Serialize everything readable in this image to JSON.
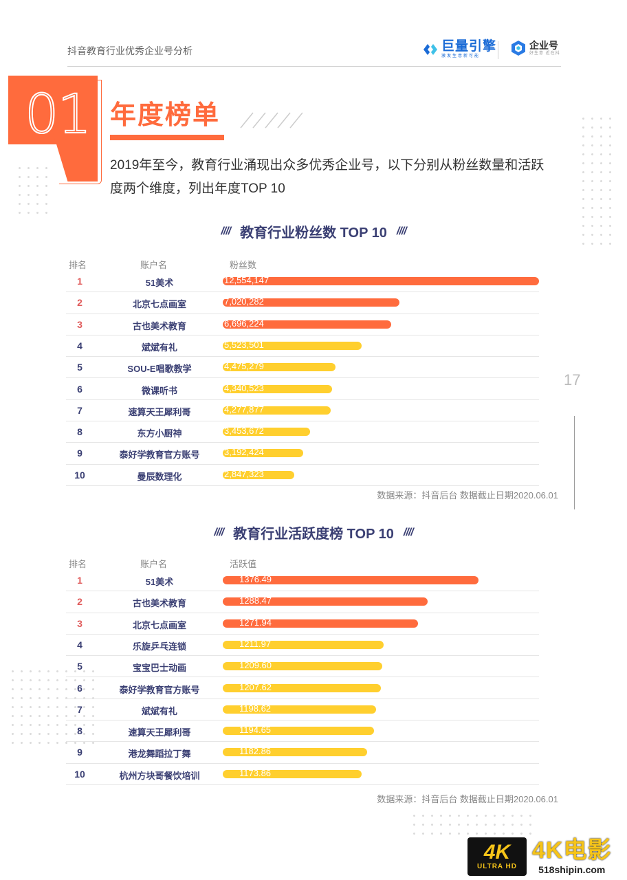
{
  "header": {
    "title": "抖音教育行业优秀企业号分析",
    "logo_primary_name": "巨量引擎",
    "logo_primary_sub": "激发生意新可能",
    "logo_secondary_name": "企业号",
    "logo_secondary_sub": "好生意 近在抖",
    "brand_blue": "#1a6bd6"
  },
  "section": {
    "number": "01",
    "title": "年度榜单",
    "intro": "2019年至今，教育行业涌现出众多优秀企业号，以下分别从粉丝数量和活跃度两个维度，列出年度TOP 10",
    "accent_color": "#ff6b3d"
  },
  "chart_data": [
    {
      "type": "bar",
      "title": "教育行业粉丝数 TOP 10",
      "title_slash": "////",
      "columns": [
        "排名",
        "账户名",
        "粉丝数"
      ],
      "categories": [
        "51美术",
        "北京七点画室",
        "古也美术教育",
        "斌斌有礼",
        "SOU-E唱歌教学",
        "微课听书",
        "速算天王犀利哥",
        "东方小厨神",
        "泰好学教育官方账号",
        "曼辰数理化"
      ],
      "ranks": [
        "1",
        "2",
        "3",
        "4",
        "5",
        "6",
        "7",
        "8",
        "9",
        "10"
      ],
      "values": [
        12554147,
        7020282,
        6696224,
        5523501,
        4475279,
        4340523,
        4277877,
        3453672,
        3192424,
        2847323
      ],
      "labels": [
        "12,554,147",
        "7,020,282",
        "6,696,224",
        "5,523,501",
        "4,475,279",
        "4,340,523",
        "4,277,877",
        "3,453,672",
        "3,192,424",
        "2,847,323"
      ],
      "xlim": [
        0,
        12554147
      ],
      "colors": {
        "top3": "#ff6b3d",
        "rest": "#ffcf2e"
      },
      "source": "数据来源：抖音后台 数据截止日期2020.06.01"
    },
    {
      "type": "bar",
      "title": "教育行业活跃度榜 TOP 10",
      "title_slash": "////",
      "columns": [
        "排名",
        "账户名",
        "活跃值"
      ],
      "categories": [
        "51美术",
        "古也美术教育",
        "北京七点画室",
        "乐旋乒乓连锁",
        "宝宝巴士动画",
        "泰好学教育官方账号",
        "斌斌有礼",
        "速算天王犀利哥",
        "港龙舞蹈拉丁舞",
        "杭州方块哥餐饮培训"
      ],
      "ranks": [
        "1",
        "2",
        "3",
        "4",
        "5",
        "6",
        "7",
        "8",
        "9",
        "10"
      ],
      "values": [
        1376.49,
        1288.47,
        1271.94,
        1211.97,
        1209.6,
        1207.62,
        1198.62,
        1194.65,
        1182.86,
        1173.86
      ],
      "labels": [
        "1376.49",
        "1288.47",
        "1271.94",
        "1211.97",
        "1209.60",
        "1207.62",
        "1198.62",
        "1194.65",
        "1182.86",
        "1173.86"
      ],
      "xlim": [
        1100,
        1400
      ],
      "colors": {
        "top3": "#ff6b3d",
        "rest": "#ffcf2e"
      },
      "source": "数据来源：抖音后台 数据截止日期2020.06.01"
    }
  ],
  "page": {
    "number": "17"
  },
  "watermark": {
    "badge_main": "4K",
    "badge_sub": "ULTRA HD",
    "title": "4K电影",
    "url": "518shipin.com",
    "color": "#f6c419"
  }
}
